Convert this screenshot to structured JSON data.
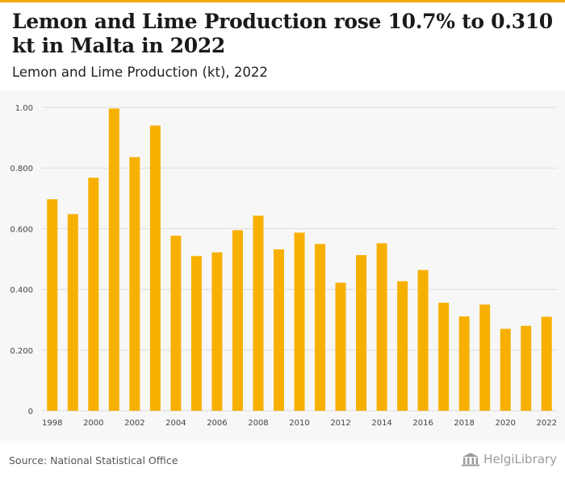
{
  "title": "Lemon and Lime Production rose 10.7% to 0.310 kt in Malta in 2022",
  "subtitle": "Lemon and Lime Production (kt), 2022",
  "source": "Source: National Statistical Office",
  "brand": "HelgiLibrary",
  "colors": {
    "bar": "#f7b000",
    "accent": "#f5a800",
    "grid": "#dddddd",
    "background": "#f7f7f7"
  },
  "chart_data": {
    "type": "bar",
    "categories": [
      "1998",
      "1999",
      "2000",
      "2001",
      "2002",
      "2003",
      "2004",
      "2005",
      "2006",
      "2007",
      "2008",
      "2009",
      "2010",
      "2011",
      "2012",
      "2013",
      "2014",
      "2015",
      "2016",
      "2017",
      "2018",
      "2019",
      "2020",
      "2021",
      "2022"
    ],
    "x_tick_labels": [
      "1998",
      "2000",
      "2002",
      "2004",
      "2006",
      "2008",
      "2010",
      "2012",
      "2014",
      "2016",
      "2018",
      "2020",
      "2022"
    ],
    "values": [
      0.697,
      0.648,
      0.768,
      0.996,
      0.836,
      0.94,
      0.577,
      0.51,
      0.522,
      0.595,
      0.643,
      0.532,
      0.587,
      0.55,
      0.422,
      0.513,
      0.552,
      0.427,
      0.464,
      0.356,
      0.311,
      0.35,
      0.27,
      0.28,
      0.31
    ],
    "y_ticks": [
      {
        "value": 0,
        "label": "0"
      },
      {
        "value": 0.2,
        "label": "0.200"
      },
      {
        "value": 0.4,
        "label": "0.400"
      },
      {
        "value": 0.6,
        "label": "0.600"
      },
      {
        "value": 0.8,
        "label": "0.800"
      },
      {
        "value": 1.0,
        "label": "1.00"
      }
    ],
    "ylim": [
      0,
      1.0
    ],
    "grid": true,
    "xlabel": "",
    "ylabel": ""
  }
}
